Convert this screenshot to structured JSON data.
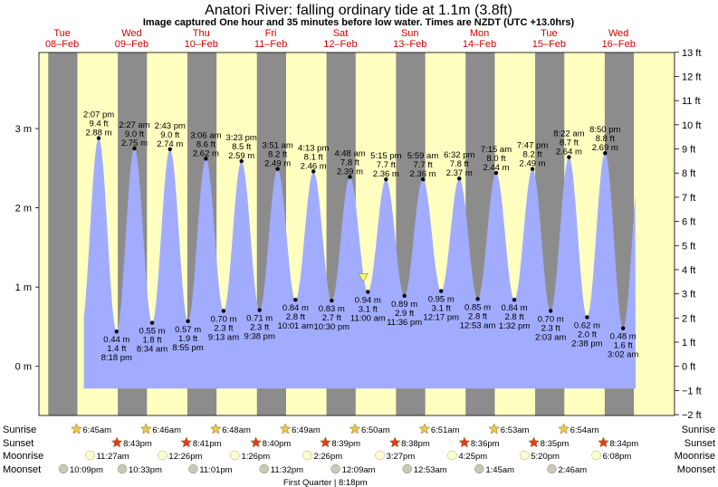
{
  "title": "Anatori River: falling  ordinary tide at 1.1m (3.8ft)",
  "subtitle": "Image captured One hour and 35 minutes before low water. Times are NZDT (UTC +13.0hrs)",
  "chart_data": {
    "type": "area",
    "title": "Anatori River: falling  ordinary tide at 1.1m (3.8ft)",
    "subtitle": "Image captured One hour and 35 minutes before low water. Times are NZDT (UTC +13.0hrs)",
    "x_range_hours": [
      -6.5,
      212.8
    ],
    "ylim_m": [
      -0.62,
      3.96
    ],
    "y_left_ticks_m": [
      0,
      1,
      2,
      3
    ],
    "y_left_labels": [
      "0 m",
      "1 m",
      "2 m",
      "3 m"
    ],
    "y_right_ticks_ft": [
      -2,
      -1,
      0,
      1,
      2,
      3,
      4,
      5,
      6,
      7,
      8,
      9,
      10,
      11,
      12,
      13
    ],
    "y_right_labels": [
      "−2 ft",
      "−1 ft",
      "0 ft",
      "1 ft",
      "2 ft",
      "3 ft",
      "4 ft",
      "5 ft",
      "6 ft",
      "7 ft",
      "8 ft",
      "9 ft",
      "10 ft",
      "11 ft",
      "12 ft",
      "13 ft"
    ],
    "days": [
      {
        "weekday": "Tue",
        "date": "08–Feb"
      },
      {
        "weekday": "Wed",
        "date": "09–Feb"
      },
      {
        "weekday": "Thu",
        "date": "10–Feb"
      },
      {
        "weekday": "Fri",
        "date": "11–Feb"
      },
      {
        "weekday": "Sat",
        "date": "12–Feb"
      },
      {
        "weekday": "Sun",
        "date": "13–Feb"
      },
      {
        "weekday": "Mon",
        "date": "14–Feb"
      },
      {
        "weekday": "Tue",
        "date": "15–Feb"
      },
      {
        "weekday": "Wed",
        "date": "16–Feb"
      }
    ],
    "tides": [
      {
        "type": "high",
        "hour": 14.12,
        "m": 2.88,
        "time": "2:07 pm",
        "ft": "9.4 ft",
        "mlabel": "2.88 m"
      },
      {
        "type": "low",
        "hour": 20.3,
        "m": 0.44,
        "time": "8:18 pm",
        "ft": "1.4 ft",
        "mlabel": "0.44 m"
      },
      {
        "type": "high",
        "hour": 26.45,
        "m": 2.75,
        "time": "2:27 am",
        "ft": "9.0 ft",
        "mlabel": "2.75 m"
      },
      {
        "type": "low",
        "hour": 32.57,
        "m": 0.55,
        "time": "8:34 am",
        "ft": "1.8 ft",
        "mlabel": "0.55 m"
      },
      {
        "type": "high",
        "hour": 38.72,
        "m": 2.74,
        "time": "2:43 pm",
        "ft": "9.0 ft",
        "mlabel": "2.74 m"
      },
      {
        "type": "low",
        "hour": 44.92,
        "m": 0.57,
        "time": "8:55 pm",
        "ft": "1.9 ft",
        "mlabel": "0.57 m"
      },
      {
        "type": "high",
        "hour": 51.1,
        "m": 2.62,
        "time": "3:06 am",
        "ft": "8.6 ft",
        "mlabel": "2.62 m"
      },
      {
        "type": "low",
        "hour": 57.22,
        "m": 0.7,
        "time": "9:13 am",
        "ft": "2.3 ft",
        "mlabel": "0.70 m"
      },
      {
        "type": "high",
        "hour": 63.38,
        "m": 2.59,
        "time": "3:23 pm",
        "ft": "8.5 ft",
        "mlabel": "2.59 m"
      },
      {
        "type": "low",
        "hour": 69.63,
        "m": 0.71,
        "time": "9:38 pm",
        "ft": "2.3 ft",
        "mlabel": "0.71 m"
      },
      {
        "type": "high",
        "hour": 75.85,
        "m": 2.49,
        "time": "3:51 am",
        "ft": "8.2 ft",
        "mlabel": "2.49 m"
      },
      {
        "type": "low",
        "hour": 82.02,
        "m": 0.84,
        "time": "10:01 am",
        "ft": "2.8 ft",
        "mlabel": "0.84 m"
      },
      {
        "type": "high",
        "hour": 88.22,
        "m": 2.46,
        "time": "4:13 pm",
        "ft": "8.1 ft",
        "mlabel": "2.46 m"
      },
      {
        "type": "low",
        "hour": 94.5,
        "m": 0.83,
        "time": "10:30 pm",
        "ft": "2.7 ft",
        "mlabel": "0.83 m"
      },
      {
        "type": "high",
        "hour": 100.8,
        "m": 2.39,
        "time": "4:48 am",
        "ft": "7.8 ft",
        "mlabel": "2.39 m"
      },
      {
        "type": "low",
        "hour": 107.0,
        "m": 0.94,
        "time": "11:00 am",
        "ft": "3.1 ft",
        "mlabel": "0.94 m"
      },
      {
        "type": "high",
        "hour": 113.25,
        "m": 2.36,
        "time": "5:15 pm",
        "ft": "7.7 ft",
        "mlabel": "2.36 m"
      },
      {
        "type": "low",
        "hour": 119.6,
        "m": 0.89,
        "time": "11:36 pm",
        "ft": "2.9 ft",
        "mlabel": "0.89 m"
      },
      {
        "type": "high",
        "hour": 125.98,
        "m": 2.36,
        "time": "5:59 am",
        "ft": "7.7 ft",
        "mlabel": "2.36 m"
      },
      {
        "type": "low",
        "hour": 132.28,
        "m": 0.95,
        "time": "12:17 pm",
        "ft": "3.1 ft",
        "mlabel": "0.95 m"
      },
      {
        "type": "high",
        "hour": 138.53,
        "m": 2.37,
        "time": "6:32 pm",
        "ft": "7.8 ft",
        "mlabel": "2.37 m"
      },
      {
        "type": "low",
        "hour": 144.88,
        "m": 0.85,
        "time": "12:53 am",
        "ft": "2.8 ft",
        "mlabel": "0.85 m"
      },
      {
        "type": "high",
        "hour": 151.25,
        "m": 2.44,
        "time": "7:15 am",
        "ft": "8.0 ft",
        "mlabel": "2.44 m"
      },
      {
        "type": "low",
        "hour": 157.53,
        "m": 0.84,
        "time": "1:32 pm",
        "ft": "2.8 ft",
        "mlabel": "0.84 m"
      },
      {
        "type": "high",
        "hour": 163.78,
        "m": 2.49,
        "time": "7:47 pm",
        "ft": "8.2 ft",
        "mlabel": "2.49 m"
      },
      {
        "type": "low",
        "hour": 170.05,
        "m": 0.7,
        "time": "2:03 am",
        "ft": "2.3 ft",
        "mlabel": "0.70 m"
      },
      {
        "type": "high",
        "hour": 176.37,
        "m": 2.64,
        "time": "8:22 am",
        "ft": "8.7 ft",
        "mlabel": "2.64 m"
      },
      {
        "type": "low",
        "hour": 182.63,
        "m": 0.62,
        "time": "2:38 pm",
        "ft": "2.0 ft",
        "mlabel": "0.62 m"
      },
      {
        "type": "high",
        "hour": 188.83,
        "m": 2.69,
        "time": "8:50 pm",
        "ft": "8.8 ft",
        "mlabel": "2.69 m"
      },
      {
        "type": "low",
        "hour": 195.05,
        "m": 0.48,
        "time": "3:02 am",
        "ft": "1.6 ft",
        "mlabel": "0.48 m"
      }
    ],
    "current_marker": {
      "hour": 105.4,
      "m": 1.1
    },
    "daylight": {
      "sunrise_hour": 6.78,
      "sunset_hour": 20.71
    },
    "rows": {
      "sunrise_label": "Sunrise",
      "sunset_label": "Sunset",
      "moonrise_label": "Moonrise",
      "moonset_label": "Moonset",
      "sunrise": [
        {
          "hour": 6.75,
          "label": "6:45am"
        },
        {
          "hour": 30.77,
          "label": "6:46am"
        },
        {
          "hour": 54.8,
          "label": "6:48am"
        },
        {
          "hour": 78.82,
          "label": "6:49am"
        },
        {
          "hour": 102.83,
          "label": "6:50am"
        },
        {
          "hour": 126.85,
          "label": "6:51am"
        },
        {
          "hour": 150.88,
          "label": "6:53am"
        },
        {
          "hour": 174.9,
          "label": "6:54am"
        }
      ],
      "sunset": [
        {
          "hour": 20.72,
          "label": "8:43pm"
        },
        {
          "hour": 44.68,
          "label": "8:41pm"
        },
        {
          "hour": 68.67,
          "label": "8:40pm"
        },
        {
          "hour": 92.65,
          "label": "8:39pm"
        },
        {
          "hour": 116.63,
          "label": "8:38pm"
        },
        {
          "hour": 140.6,
          "label": "8:36pm"
        },
        {
          "hour": 164.58,
          "label": "8:35pm"
        },
        {
          "hour": 188.57,
          "label": "8:34pm"
        }
      ],
      "moonrise": [
        {
          "hour": 11.45,
          "label": "11:27am"
        },
        {
          "hour": 36.43,
          "label": "12:26pm"
        },
        {
          "hour": 61.43,
          "label": "1:26pm"
        },
        {
          "hour": 86.43,
          "label": "2:26pm"
        },
        {
          "hour": 111.45,
          "label": "3:27pm"
        },
        {
          "hour": 136.42,
          "label": "4:25pm"
        },
        {
          "hour": 161.33,
          "label": "5:20pm"
        },
        {
          "hour": 186.13,
          "label": "6:08pm"
        }
      ],
      "moonset": [
        {
          "hour": -1.85,
          "label": "10:09pm"
        },
        {
          "hour": 22.55,
          "label": "10:33pm"
        },
        {
          "hour": 47.02,
          "label": "11:01pm"
        },
        {
          "hour": 71.53,
          "label": "11:32pm"
        },
        {
          "hour": 96.15,
          "label": "12:09am"
        },
        {
          "hour": 120.88,
          "label": "12:53am"
        },
        {
          "hour": 145.75,
          "label": "1:45am"
        },
        {
          "hour": 170.77,
          "label": "2:46am"
        }
      ]
    },
    "moon_phase_text": "First Quarter | 8:18pm",
    "colors": {
      "water": "#a2acff",
      "day": "#ffffc0",
      "night": "#8c8c8c",
      "dot": "#000000",
      "day_label": "#d40000",
      "marker": "#ffff44",
      "sun_icon": "#e8c84a",
      "sunset_icon": "#e03a1f",
      "moonrise_icon": "#fffcd0",
      "moonset_icon": "#c8c8b8"
    }
  }
}
